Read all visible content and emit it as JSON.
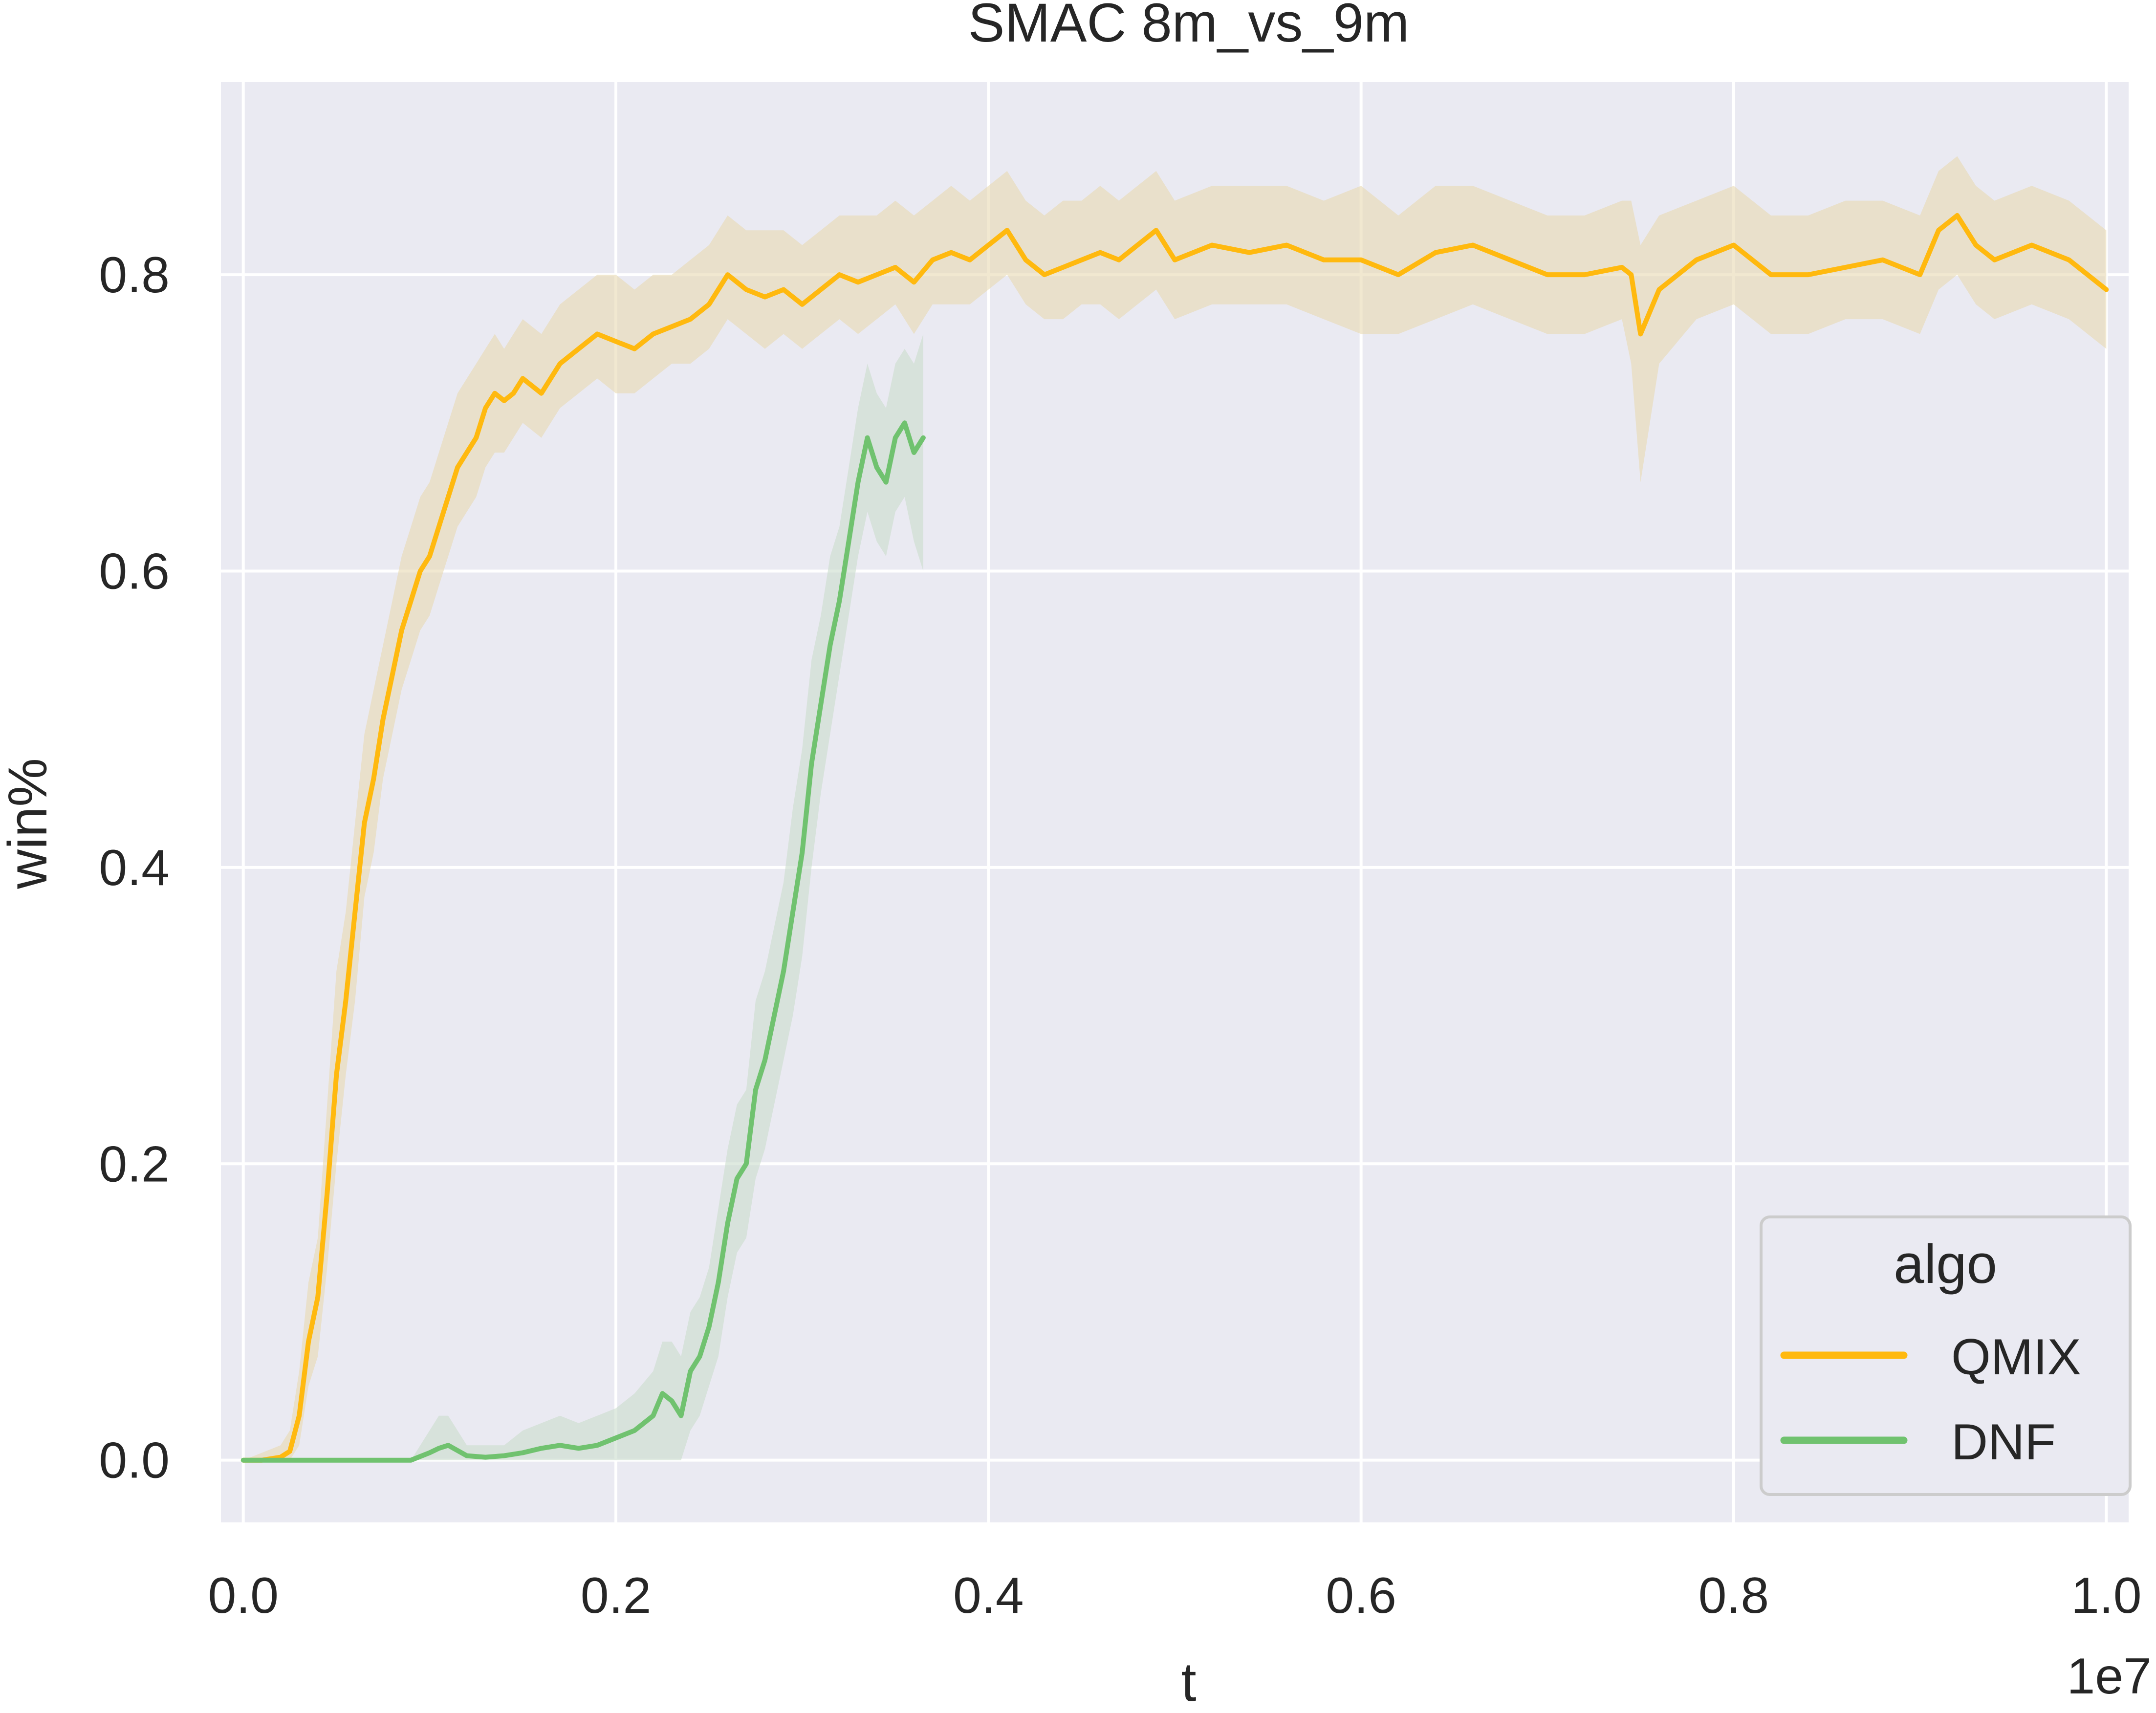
{
  "chart_data": {
    "type": "line",
    "title": "SMAC 8m_vs_9m",
    "xlabel": "t",
    "ylabel": "win%",
    "x_offset_label": "1e7",
    "xlim": [
      -0.012,
      1.012
    ],
    "ylim": [
      -0.042,
      0.93
    ],
    "x_ticks": [
      0.0,
      0.2,
      0.4,
      0.6,
      0.8,
      1.0
    ],
    "x_tick_labels": [
      "0.0",
      "0.2",
      "0.4",
      "0.6",
      "0.8",
      "1.0"
    ],
    "y_ticks": [
      0.0,
      0.2,
      0.4,
      0.6,
      0.8
    ],
    "y_tick_labels": [
      "0.0",
      "0.2",
      "0.4",
      "0.6",
      "0.8"
    ],
    "grid": true,
    "legend": {
      "title": "algo",
      "placement": "lower-right"
    },
    "colors": {
      "background": "#eaeaf2",
      "grid": "#ffffff"
    },
    "series": [
      {
        "name": "QMIX",
        "color": "#ffb90f",
        "band_color": "#e8d9b0",
        "x": [
          0.0,
          0.01,
          0.02,
          0.025,
          0.03,
          0.035,
          0.04,
          0.045,
          0.05,
          0.055,
          0.06,
          0.065,
          0.07,
          0.075,
          0.08,
          0.085,
          0.09,
          0.095,
          0.1,
          0.105,
          0.11,
          0.115,
          0.12,
          0.125,
          0.13,
          0.135,
          0.14,
          0.145,
          0.15,
          0.16,
          0.17,
          0.18,
          0.19,
          0.2,
          0.21,
          0.22,
          0.23,
          0.24,
          0.25,
          0.26,
          0.27,
          0.28,
          0.29,
          0.3,
          0.31,
          0.32,
          0.33,
          0.34,
          0.35,
          0.36,
          0.37,
          0.38,
          0.39,
          0.4,
          0.41,
          0.42,
          0.43,
          0.44,
          0.45,
          0.46,
          0.47,
          0.48,
          0.49,
          0.5,
          0.52,
          0.54,
          0.56,
          0.58,
          0.6,
          0.62,
          0.64,
          0.66,
          0.68,
          0.7,
          0.72,
          0.74,
          0.745,
          0.75,
          0.76,
          0.78,
          0.8,
          0.82,
          0.84,
          0.86,
          0.88,
          0.9,
          0.91,
          0.92,
          0.93,
          0.94,
          0.96,
          0.98,
          1.0
        ],
        "y": [
          0.0,
          0.0,
          0.002,
          0.006,
          0.03,
          0.08,
          0.11,
          0.18,
          0.26,
          0.31,
          0.37,
          0.43,
          0.46,
          0.5,
          0.53,
          0.56,
          0.58,
          0.6,
          0.61,
          0.63,
          0.65,
          0.67,
          0.68,
          0.69,
          0.71,
          0.72,
          0.715,
          0.72,
          0.73,
          0.72,
          0.74,
          0.75,
          0.76,
          0.755,
          0.75,
          0.76,
          0.765,
          0.77,
          0.78,
          0.8,
          0.79,
          0.785,
          0.79,
          0.78,
          0.79,
          0.8,
          0.795,
          0.8,
          0.805,
          0.795,
          0.81,
          0.815,
          0.81,
          0.82,
          0.83,
          0.81,
          0.8,
          0.805,
          0.81,
          0.815,
          0.81,
          0.82,
          0.83,
          0.81,
          0.82,
          0.815,
          0.82,
          0.81,
          0.81,
          0.8,
          0.815,
          0.82,
          0.81,
          0.8,
          0.8,
          0.805,
          0.8,
          0.76,
          0.79,
          0.81,
          0.82,
          0.8,
          0.8,
          0.805,
          0.81,
          0.8,
          0.83,
          0.84,
          0.82,
          0.81,
          0.82,
          0.81,
          0.79
        ],
        "band_lower": [
          0.0,
          0.0,
          0.0,
          0.0,
          0.01,
          0.05,
          0.07,
          0.13,
          0.2,
          0.26,
          0.31,
          0.38,
          0.41,
          0.46,
          0.49,
          0.52,
          0.54,
          0.56,
          0.57,
          0.59,
          0.61,
          0.63,
          0.64,
          0.65,
          0.67,
          0.68,
          0.68,
          0.69,
          0.7,
          0.69,
          0.71,
          0.72,
          0.73,
          0.72,
          0.72,
          0.73,
          0.74,
          0.74,
          0.75,
          0.77,
          0.76,
          0.75,
          0.76,
          0.75,
          0.76,
          0.77,
          0.76,
          0.77,
          0.78,
          0.76,
          0.78,
          0.78,
          0.78,
          0.79,
          0.8,
          0.78,
          0.77,
          0.77,
          0.78,
          0.78,
          0.77,
          0.78,
          0.79,
          0.77,
          0.78,
          0.78,
          0.78,
          0.77,
          0.76,
          0.76,
          0.77,
          0.78,
          0.77,
          0.76,
          0.76,
          0.77,
          0.74,
          0.66,
          0.74,
          0.77,
          0.78,
          0.76,
          0.76,
          0.77,
          0.77,
          0.76,
          0.79,
          0.8,
          0.78,
          0.77,
          0.78,
          0.77,
          0.75
        ],
        "band_upper": [
          0.0,
          0.005,
          0.01,
          0.02,
          0.06,
          0.12,
          0.15,
          0.24,
          0.33,
          0.37,
          0.43,
          0.49,
          0.52,
          0.55,
          0.58,
          0.61,
          0.63,
          0.65,
          0.66,
          0.68,
          0.7,
          0.72,
          0.73,
          0.74,
          0.75,
          0.76,
          0.75,
          0.76,
          0.77,
          0.76,
          0.78,
          0.79,
          0.8,
          0.8,
          0.79,
          0.8,
          0.8,
          0.81,
          0.82,
          0.84,
          0.83,
          0.83,
          0.83,
          0.82,
          0.83,
          0.84,
          0.84,
          0.84,
          0.85,
          0.84,
          0.85,
          0.86,
          0.85,
          0.86,
          0.87,
          0.85,
          0.84,
          0.85,
          0.85,
          0.86,
          0.85,
          0.86,
          0.87,
          0.85,
          0.86,
          0.86,
          0.86,
          0.85,
          0.86,
          0.84,
          0.86,
          0.86,
          0.85,
          0.84,
          0.84,
          0.85,
          0.85,
          0.82,
          0.84,
          0.85,
          0.86,
          0.84,
          0.84,
          0.85,
          0.85,
          0.84,
          0.87,
          0.88,
          0.86,
          0.85,
          0.86,
          0.85,
          0.83
        ]
      },
      {
        "name": "DNF",
        "color": "#70c26f",
        "band_color": "#c9dccb",
        "x": [
          0.0,
          0.05,
          0.09,
          0.1,
          0.105,
          0.11,
          0.12,
          0.13,
          0.14,
          0.15,
          0.16,
          0.17,
          0.18,
          0.19,
          0.2,
          0.21,
          0.22,
          0.225,
          0.23,
          0.235,
          0.24,
          0.245,
          0.25,
          0.255,
          0.26,
          0.265,
          0.27,
          0.275,
          0.28,
          0.285,
          0.29,
          0.295,
          0.3,
          0.305,
          0.31,
          0.315,
          0.32,
          0.325,
          0.33,
          0.335,
          0.34,
          0.345,
          0.35,
          0.355,
          0.36,
          0.365
        ],
        "y": [
          0.0,
          0.0,
          0.0,
          0.005,
          0.008,
          0.01,
          0.003,
          0.002,
          0.003,
          0.005,
          0.008,
          0.01,
          0.008,
          0.01,
          0.015,
          0.02,
          0.03,
          0.045,
          0.04,
          0.03,
          0.06,
          0.07,
          0.09,
          0.12,
          0.16,
          0.19,
          0.2,
          0.25,
          0.27,
          0.3,
          0.33,
          0.37,
          0.41,
          0.47,
          0.51,
          0.55,
          0.58,
          0.62,
          0.66,
          0.69,
          0.67,
          0.66,
          0.69,
          0.7,
          0.68,
          0.69
        ],
        "band_lower": [
          0.0,
          0.0,
          0.0,
          0.0,
          0.0,
          0.0,
          0.0,
          0.0,
          0.0,
          0.0,
          0.0,
          0.0,
          0.0,
          0.0,
          0.0,
          0.0,
          0.0,
          0.0,
          0.0,
          0.0,
          0.02,
          0.03,
          0.05,
          0.07,
          0.11,
          0.14,
          0.15,
          0.19,
          0.21,
          0.24,
          0.27,
          0.3,
          0.34,
          0.4,
          0.45,
          0.49,
          0.53,
          0.57,
          0.61,
          0.64,
          0.62,
          0.61,
          0.64,
          0.65,
          0.62,
          0.6
        ],
        "band_upper": [
          0.0,
          0.0,
          0.0,
          0.02,
          0.03,
          0.03,
          0.01,
          0.01,
          0.01,
          0.02,
          0.025,
          0.03,
          0.025,
          0.03,
          0.035,
          0.045,
          0.06,
          0.08,
          0.08,
          0.07,
          0.1,
          0.11,
          0.13,
          0.17,
          0.21,
          0.24,
          0.25,
          0.31,
          0.33,
          0.36,
          0.39,
          0.44,
          0.48,
          0.54,
          0.57,
          0.61,
          0.63,
          0.67,
          0.71,
          0.74,
          0.72,
          0.71,
          0.74,
          0.75,
          0.74,
          0.76
        ]
      }
    ]
  }
}
